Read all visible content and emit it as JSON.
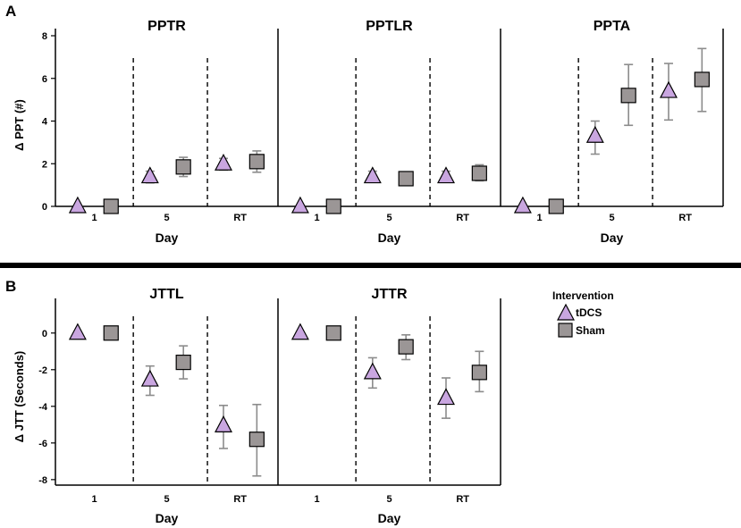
{
  "figure": {
    "panel_a_letter": "A",
    "panel_b_letter": "B",
    "colors": {
      "tdcs_fill": "#c9a6e0",
      "sham_fill": "#9b9696",
      "error_bar": "#8c8c8c"
    }
  },
  "legend": {
    "title": "Intervention",
    "items": [
      {
        "name": "tDCS",
        "marker": "triangle"
      },
      {
        "name": "Sham",
        "marker": "square"
      }
    ]
  },
  "chart_data": [
    {
      "type": "scatter",
      "panel": "A",
      "ylabel": "Δ PPT (#)",
      "xlabel": "Day",
      "ylim": [
        0,
        8
      ],
      "yticks": [
        0,
        2,
        4,
        6,
        8
      ],
      "facets": [
        {
          "title": "PPTR",
          "categories": [
            "1",
            "5",
            "RT"
          ],
          "series": [
            {
              "name": "tDCS",
              "values": [
                0,
                1.4,
                2.0
              ],
              "err_low": [
                null,
                1.1,
                1.7
              ],
              "err_high": [
                null,
                1.65,
                2.25
              ]
            },
            {
              "name": "Sham",
              "values": [
                0,
                1.85,
                2.1
              ],
              "err_low": [
                null,
                1.4,
                1.6
              ],
              "err_high": [
                null,
                2.3,
                2.6
              ]
            }
          ]
        },
        {
          "title": "PPTLR",
          "categories": [
            "1",
            "5",
            "RT"
          ],
          "series": [
            {
              "name": "tDCS",
              "values": [
                0,
                1.4,
                1.4
              ],
              "err_low": [
                null,
                1.15,
                1.15
              ],
              "err_high": [
                null,
                1.65,
                1.65
              ]
            },
            {
              "name": "Sham",
              "values": [
                0,
                1.3,
                1.55
              ],
              "err_low": [
                null,
                1.05,
                1.2
              ],
              "err_high": [
                null,
                1.6,
                1.95
              ]
            }
          ]
        },
        {
          "title": "PPTA",
          "categories": [
            "1",
            "5",
            "RT"
          ],
          "series": [
            {
              "name": "tDCS",
              "values": [
                0,
                3.3,
                5.4
              ],
              "err_low": [
                null,
                2.45,
                4.05
              ],
              "err_high": [
                null,
                4.0,
                6.7
              ]
            },
            {
              "name": "Sham",
              "values": [
                0,
                5.2,
                5.95
              ],
              "err_low": [
                null,
                3.8,
                4.45
              ],
              "err_high": [
                null,
                6.65,
                7.4
              ]
            }
          ]
        }
      ]
    },
    {
      "type": "scatter",
      "panel": "B",
      "ylabel": "Δ JTT (Seconds)",
      "xlabel": "Day",
      "ylim": [
        -8.3,
        1.5
      ],
      "yticks": [
        0,
        -2,
        -4,
        -6,
        -8
      ],
      "facets": [
        {
          "title": "JTTL",
          "categories": [
            "1",
            "5",
            "RT"
          ],
          "series": [
            {
              "name": "tDCS",
              "values": [
                0,
                -2.55,
                -5.05
              ],
              "err_low": [
                null,
                -3.4,
                -6.3
              ],
              "err_high": [
                null,
                -1.8,
                -3.95
              ]
            },
            {
              "name": "Sham",
              "values": [
                0,
                -1.6,
                -5.8
              ],
              "err_low": [
                null,
                -2.5,
                -7.8
              ],
              "err_high": [
                null,
                -0.7,
                -3.9
              ]
            }
          ]
        },
        {
          "title": "JTTR",
          "categories": [
            "1",
            "5",
            "RT"
          ],
          "series": [
            {
              "name": "tDCS",
              "values": [
                0,
                -2.15,
                -3.55
              ],
              "err_low": [
                null,
                -3.0,
                -4.65
              ],
              "err_high": [
                null,
                -1.35,
                -2.45
              ]
            },
            {
              "name": "Sham",
              "values": [
                0,
                -0.75,
                -2.15
              ],
              "err_low": [
                null,
                -1.45,
                -3.2
              ],
              "err_high": [
                null,
                -0.1,
                -1.0
              ]
            }
          ]
        }
      ]
    }
  ]
}
